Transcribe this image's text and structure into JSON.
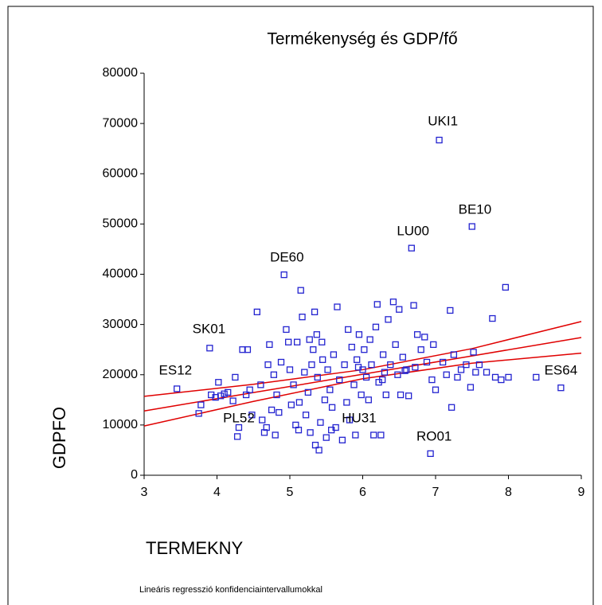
{
  "chart_data": {
    "type": "scatter",
    "title": "Termékenység és GDP/fő",
    "x_label": "TERMEKNY",
    "y_label": "GDPFO",
    "footnote": "Lineáris regresszió konfidenciaintervallumokkal",
    "xlim": [
      3,
      9
    ],
    "ylim": [
      0,
      80000
    ],
    "xticks": [
      3,
      4,
      5,
      6,
      7,
      8,
      9
    ],
    "yticks": [
      0,
      10000,
      20000,
      30000,
      40000,
      50000,
      60000,
      70000,
      80000
    ],
    "grid": false,
    "series": [
      {
        "color": "#2323d0",
        "x": [
          3.45,
          3.75,
          3.78,
          3.9,
          3.92,
          3.98,
          4.02,
          4.05,
          4.1,
          4.15,
          4.22,
          4.25,
          4.28,
          4.3,
          4.35,
          4.42,
          4.45,
          4.48,
          4.55,
          4.6,
          4.62,
          4.65,
          4.7,
          4.72,
          4.75,
          4.78,
          4.8,
          4.82,
          4.85,
          4.88,
          4.92,
          4.95,
          4.98,
          5.0,
          5.02,
          5.05,
          5.08,
          5.1,
          5.12,
          5.15,
          5.17,
          5.2,
          5.22,
          5.25,
          5.28,
          5.3,
          5.32,
          5.34,
          5.35,
          5.37,
          5.38,
          5.4,
          5.42,
          5.45,
          5.48,
          5.5,
          5.52,
          5.55,
          5.58,
          5.6,
          5.63,
          5.65,
          5.68,
          5.72,
          5.75,
          5.78,
          5.8,
          5.82,
          5.85,
          5.88,
          5.9,
          5.92,
          5.95,
          5.98,
          6.0,
          6.02,
          6.05,
          6.08,
          6.1,
          6.12,
          6.15,
          6.18,
          6.2,
          6.22,
          6.25,
          6.28,
          6.3,
          6.32,
          6.35,
          6.38,
          6.42,
          6.45,
          6.48,
          6.5,
          6.52,
          6.55,
          6.6,
          6.63,
          6.67,
          6.7,
          6.72,
          6.75,
          6.8,
          6.85,
          6.88,
          6.93,
          6.97,
          7.0,
          7.05,
          7.1,
          7.15,
          7.2,
          7.22,
          7.25,
          7.3,
          7.35,
          7.42,
          7.48,
          7.5,
          7.52,
          7.55,
          7.6,
          7.7,
          7.78,
          7.82,
          7.9,
          7.96,
          8.0,
          8.38,
          8.72,
          4.4,
          4.68,
          5.13,
          5.27,
          5.44,
          5.57,
          5.94,
          6.27,
          6.58,
          6.95
        ],
        "values": [
          17200,
          12300,
          14000,
          25300,
          16000,
          15500,
          18500,
          15800,
          16200,
          16500,
          14800,
          19500,
          7700,
          9500,
          25000,
          25000,
          17000,
          12000,
          32500,
          18000,
          11000,
          8500,
          22000,
          26000,
          13000,
          20000,
          8000,
          16000,
          12500,
          22500,
          39900,
          29000,
          26500,
          21000,
          14000,
          18000,
          10000,
          26500,
          9000,
          36800,
          31500,
          20500,
          12000,
          16500,
          8500,
          22000,
          25000,
          32500,
          6000,
          28000,
          19500,
          5000,
          10500,
          23000,
          15000,
          7500,
          21000,
          17000,
          13500,
          24000,
          9500,
          33500,
          19000,
          7000,
          22000,
          14500,
          29000,
          11000,
          25500,
          18000,
          8000,
          23000,
          28000,
          16000,
          21000,
          25000,
          19500,
          15000,
          27000,
          22000,
          8000,
          29500,
          34000,
          18500,
          8000,
          24000,
          20500,
          16000,
          31000,
          22000,
          34500,
          26000,
          20000,
          33000,
          16000,
          23500,
          21000,
          15800,
          45200,
          33800,
          21500,
          28000,
          25000,
          27500,
          22500,
          4300,
          26000,
          17000,
          66700,
          22500,
          20000,
          32800,
          13500,
          24000,
          19500,
          21000,
          22000,
          17500,
          49500,
          24500,
          20500,
          22000,
          20500,
          31200,
          19500,
          19000,
          37400,
          19500,
          19500,
          17400,
          16000,
          9500,
          14500,
          27000,
          26500,
          9000,
          21500,
          19000,
          20800,
          19000
        ]
      }
    ],
    "lines": [
      {
        "color": "#e00000",
        "x": [
          3,
          4.5,
          6,
          7.5,
          9
        ],
        "values": [
          15700,
          18100,
          21000,
          25200,
          30600
        ]
      },
      {
        "color": "#e00000",
        "x": [
          3,
          4.5,
          6,
          7.5,
          9
        ],
        "values": [
          12800,
          16450,
          20100,
          23750,
          27400
        ]
      },
      {
        "color": "#e00000",
        "x": [
          3,
          4.5,
          6,
          7.5,
          9
        ],
        "values": [
          9800,
          14700,
          19200,
          22300,
          24300
        ]
      }
    ],
    "annotations": [
      {
        "text": "UKI1",
        "x": 7.1,
        "y": 70340
      },
      {
        "text": "BE10",
        "x": 7.54,
        "y": 52750
      },
      {
        "text": "LU00",
        "x": 6.69,
        "y": 48480
      },
      {
        "text": "DE60",
        "x": 4.96,
        "y": 43250
      },
      {
        "text": "SK01",
        "x": 3.89,
        "y": 29000
      },
      {
        "text": "ES12",
        "x": 3.43,
        "y": 20750
      },
      {
        "text": "ES64",
        "x": 8.72,
        "y": 20750
      },
      {
        "text": "PL52",
        "x": 4.3,
        "y": 11250
      },
      {
        "text": "HU31",
        "x": 5.95,
        "y": 11250
      },
      {
        "text": "RO01",
        "x": 6.98,
        "y": 7600
      }
    ]
  }
}
